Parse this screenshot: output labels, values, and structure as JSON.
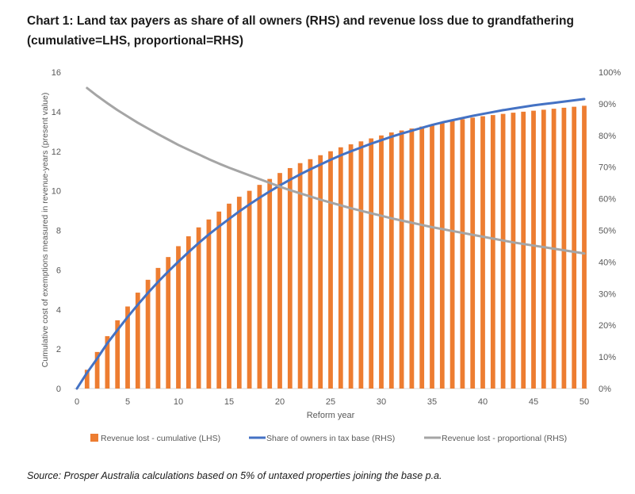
{
  "title_line1": "Chart 1: Land tax payers as share of all owners (RHS) and revenue loss due to grandfathering",
  "title_line2": "(cumulative=LHS, proportional=RHS)",
  "source": "Source: Prosper Australia calculations based on 5% of untaxed properties joining the base p.a.",
  "colors": {
    "bars": "#ED7D31",
    "share_line": "#4472C4",
    "prop_line": "#A5A5A5",
    "axis_text": "#595959",
    "axis_line": "#d9d9d9"
  },
  "chart_data": {
    "type": "bar",
    "xlabel": "Reform year",
    "ylabel": "Cumulative cost of exemptions measured in revenue-years (present value)",
    "ylim": [
      0,
      16
    ],
    "y2lim": [
      0,
      1
    ],
    "xlim": [
      0,
      50
    ],
    "x_ticks": [
      0,
      5,
      10,
      15,
      20,
      25,
      30,
      35,
      40,
      45,
      50
    ],
    "y_ticks": [
      0,
      2,
      4,
      6,
      8,
      10,
      12,
      14,
      16
    ],
    "y2_ticks": [
      "0%",
      "10%",
      "20%",
      "30%",
      "40%",
      "50%",
      "60%",
      "70%",
      "80%",
      "90%",
      "100%"
    ],
    "grid": false,
    "legend_position": "bottom",
    "x": [
      1,
      2,
      3,
      4,
      5,
      6,
      7,
      8,
      9,
      10,
      11,
      12,
      13,
      14,
      15,
      16,
      17,
      18,
      19,
      20,
      21,
      22,
      23,
      24,
      25,
      26,
      27,
      28,
      29,
      30,
      31,
      32,
      33,
      34,
      35,
      36,
      37,
      38,
      39,
      40,
      41,
      42,
      43,
      44,
      45,
      46,
      47,
      48,
      49,
      50
    ],
    "series": [
      {
        "name": "Revenue lost - cumulative (LHS)",
        "type": "bar",
        "axis": "left",
        "values": [
          0.95,
          1.85,
          2.65,
          3.45,
          4.15,
          4.85,
          5.5,
          6.1,
          6.65,
          7.2,
          7.7,
          8.15,
          8.55,
          8.95,
          9.35,
          9.7,
          10.0,
          10.3,
          10.6,
          10.9,
          11.15,
          11.4,
          11.6,
          11.8,
          12.0,
          12.2,
          12.35,
          12.5,
          12.65,
          12.8,
          12.95,
          13.05,
          13.15,
          13.25,
          13.35,
          13.45,
          13.55,
          13.62,
          13.7,
          13.77,
          13.83,
          13.89,
          13.95,
          14.0,
          14.05,
          14.1,
          14.15,
          14.2,
          14.25,
          14.3
        ]
      },
      {
        "name": "Share of owners in tax base (RHS)",
        "type": "line",
        "axis": "right",
        "values": [
          0.05,
          0.095,
          0.143,
          0.185,
          0.226,
          0.265,
          0.302,
          0.337,
          0.37,
          0.401,
          0.431,
          0.46,
          0.487,
          0.512,
          0.536,
          0.56,
          0.582,
          0.603,
          0.623,
          0.642,
          0.66,
          0.677,
          0.693,
          0.708,
          0.723,
          0.737,
          0.75,
          0.762,
          0.774,
          0.785,
          0.796,
          0.806,
          0.815,
          0.824,
          0.833,
          0.841,
          0.848,
          0.855,
          0.862,
          0.868,
          0.874,
          0.88,
          0.885,
          0.89,
          0.895,
          0.899,
          0.903,
          0.907,
          0.911,
          0.915
        ]
      },
      {
        "name": "Revenue lost - proportional (RHS)",
        "type": "line",
        "axis": "right",
        "values": [
          0.95,
          0.925,
          0.902,
          0.88,
          0.86,
          0.84,
          0.822,
          0.804,
          0.787,
          0.77,
          0.755,
          0.74,
          0.725,
          0.711,
          0.698,
          0.686,
          0.674,
          0.662,
          0.65,
          0.638,
          0.627,
          0.617,
          0.607,
          0.597,
          0.588,
          0.579,
          0.57,
          0.562,
          0.554,
          0.546,
          0.538,
          0.531,
          0.524,
          0.517,
          0.51,
          0.504,
          0.498,
          0.492,
          0.486,
          0.48,
          0.474,
          0.468,
          0.462,
          0.457,
          0.452,
          0.447,
          0.442,
          0.437,
          0.432,
          0.427
        ]
      }
    ]
  }
}
